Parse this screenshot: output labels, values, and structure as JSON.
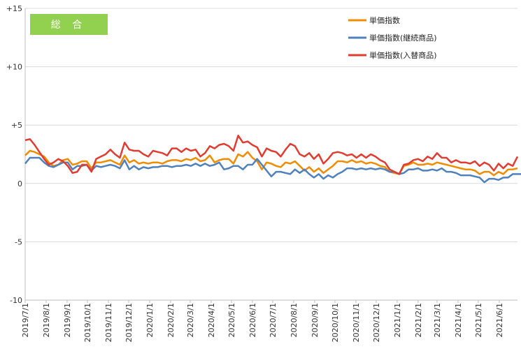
{
  "chart_data": {
    "type": "line",
    "badge": "総 合",
    "ylim": [
      -10,
      15
    ],
    "yticks": [
      {
        "value": 15,
        "label": "+15"
      },
      {
        "value": 10,
        "label": "+10"
      },
      {
        "value": 5,
        "label": "+5"
      },
      {
        "value": 0,
        "label": "0"
      },
      {
        "value": -5,
        "label": "-5"
      },
      {
        "value": -10,
        "label": "-10"
      }
    ],
    "xtick_labels": [
      "2019/7/1",
      "2019/8/1",
      "2019/9/1",
      "2019/10/1",
      "2019/11/1",
      "2019/12/1",
      "2020/1/1",
      "2020/2/1",
      "2020/3/1",
      "2020/4/1",
      "2020/5/1",
      "2020/6/1",
      "2020/7/1",
      "2020/8/1",
      "2020/9/1",
      "2020/10/1",
      "2020/11/1",
      "2020/12/1",
      "2021/1/1",
      "2021/2/1",
      "2021/3/1",
      "2021/4/1",
      "2021/5/1",
      "2021/6/1"
    ],
    "x_range": [
      "2019/7/1",
      "2021/6/28"
    ],
    "grid": "horizontal",
    "legend_position": "top-right",
    "series": [
      {
        "name": "単価指数",
        "color": "#F08C00",
        "values": [
          2.4,
          2.8,
          2.7,
          2.5,
          2.3,
          1.8,
          1.5,
          1.6,
          2.0,
          2.1,
          1.6,
          1.7,
          1.9,
          1.9,
          1.3,
          1.8,
          1.8,
          1.9,
          2.0,
          1.8,
          1.6,
          2.4,
          1.8,
          2.0,
          1.7,
          1.8,
          1.7,
          1.8,
          1.8,
          1.7,
          1.9,
          2.0,
          2.0,
          1.9,
          2.1,
          2.0,
          2.2,
          1.9,
          2.0,
          2.4,
          1.8,
          2.0,
          2.1,
          2.1,
          1.7,
          2.5,
          2.3,
          2.7,
          2.2,
          1.9,
          1.2,
          1.8,
          1.7,
          1.5,
          1.4,
          1.8,
          1.7,
          1.9,
          1.5,
          1.1,
          1.4,
          1.0,
          1.3,
          0.9,
          1.2,
          1.5,
          1.9,
          1.9,
          1.8,
          2.0,
          1.8,
          1.9,
          1.7,
          1.8,
          1.7,
          1.5,
          1.4,
          1.0,
          0.9,
          0.8,
          1.5,
          1.6,
          1.8,
          1.6,
          1.6,
          1.7,
          1.6,
          1.8,
          1.7,
          1.6,
          1.5,
          1.4,
          1.3,
          1.2,
          1.2,
          1.1,
          0.8,
          1.0,
          1.0,
          0.7,
          1.0,
          0.8,
          1.2,
          1.2,
          1.3
        ]
      },
      {
        "name": "単価指数(継続商品)",
        "color": "#4F81BD",
        "values": [
          1.7,
          2.2,
          2.2,
          2.2,
          1.8,
          1.5,
          1.4,
          1.6,
          1.8,
          1.8,
          1.2,
          1.5,
          1.5,
          1.6,
          1.1,
          1.5,
          1.4,
          1.5,
          1.6,
          1.5,
          1.3,
          2.0,
          1.2,
          1.5,
          1.2,
          1.4,
          1.3,
          1.4,
          1.4,
          1.5,
          1.5,
          1.4,
          1.5,
          1.5,
          1.6,
          1.5,
          1.7,
          1.5,
          1.7,
          1.5,
          1.6,
          1.8,
          1.2,
          1.3,
          1.5,
          1.5,
          1.2,
          1.6,
          1.6,
          2.1,
          1.6,
          1.1,
          0.6,
          1.0,
          1.0,
          0.9,
          0.8,
          1.2,
          0.9,
          1.2,
          0.8,
          0.5,
          0.8,
          0.4,
          0.7,
          0.5,
          0.8,
          1.0,
          1.3,
          1.3,
          1.2,
          1.3,
          1.2,
          1.3,
          1.2,
          1.3,
          1.2,
          1.0,
          1.0,
          0.8,
          0.9,
          1.2,
          1.2,
          1.3,
          1.1,
          1.1,
          1.2,
          1.1,
          1.3,
          1.0,
          1.0,
          0.9,
          0.7,
          0.7,
          0.7,
          0.6,
          0.5,
          0.1,
          0.4,
          0.4,
          0.3,
          0.5,
          0.5,
          0.8,
          0.8,
          0.8
        ]
      },
      {
        "name": "単価指数(入替商品)",
        "color": "#E03C31",
        "values": [
          3.7,
          3.8,
          3.3,
          2.7,
          2.1,
          1.6,
          1.8,
          2.1,
          1.9,
          1.5,
          0.9,
          1.0,
          1.6,
          1.6,
          1.0,
          2.1,
          2.3,
          2.5,
          2.9,
          2.5,
          2.2,
          3.5,
          2.9,
          2.8,
          2.8,
          2.5,
          2.3,
          2.8,
          2.7,
          2.6,
          2.4,
          3.0,
          3.0,
          2.7,
          3.0,
          2.8,
          2.9,
          2.3,
          2.6,
          3.2,
          3.0,
          3.3,
          3.4,
          3.2,
          2.8,
          4.1,
          3.5,
          3.6,
          3.3,
          3.1,
          2.3,
          3.0,
          2.8,
          2.7,
          2.3,
          2.9,
          3.4,
          3.2,
          2.5,
          2.3,
          2.6,
          2.1,
          2.5,
          1.7,
          2.1,
          2.6,
          2.7,
          2.6,
          2.4,
          2.5,
          2.2,
          2.5,
          2.2,
          2.5,
          2.3,
          2.0,
          1.8,
          1.2,
          1.0,
          0.8,
          1.6,
          1.7,
          2.0,
          2.1,
          1.9,
          2.3,
          2.1,
          2.6,
          2.2,
          2.2,
          1.8,
          2.0,
          1.8,
          1.8,
          1.7,
          1.9,
          1.5,
          1.8,
          1.6,
          1.1,
          1.7,
          1.3,
          1.7,
          1.5,
          2.3
        ]
      }
    ]
  }
}
